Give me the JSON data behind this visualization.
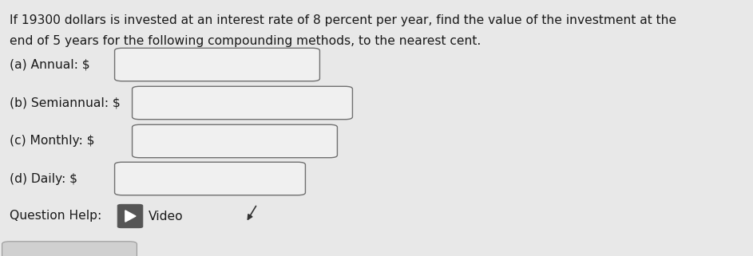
{
  "background_color": "#e8e8e8",
  "title_line1": "If 19300 dollars is invested at an interest rate of 8 percent per year, find the value of the investment at the",
  "title_line2": "end of 5 years for the following compounding methods, to the nearest cent.",
  "labels": [
    "(a) Annual: $",
    "(b) Semiannual: $",
    "(c) Monthly: $",
    "(d) Daily: $"
  ],
  "text_color": "#1a1a1a",
  "box_face_color": "#f0f0f0",
  "box_edge_color": "#707070",
  "title_fontsize": 11.2,
  "label_fontsize": 11.2,
  "qhelp_fontsize": 11.2,
  "question_help_text": "Question Help:",
  "video_text": "Video"
}
